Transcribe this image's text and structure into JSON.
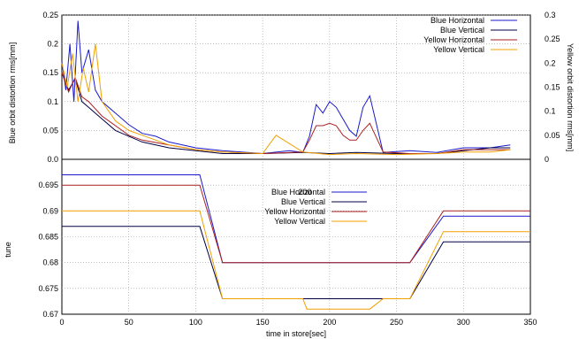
{
  "figure": {
    "top_ylabel": "Blue orbit distortion rms[mm]",
    "top_y2label": "Yellow orbit distortion rms[mm]",
    "bottom_ylabel": "tune",
    "xlabel": "time in store[sec]",
    "stray_label": "200"
  },
  "colors": {
    "blue_horizontal": "#1a1acc",
    "blue_vertical": "#000044",
    "yellow_horizontal": "#aa2222",
    "yellow_vertical": "#f0a000",
    "grid": "#999999"
  },
  "chart_data": [
    {
      "type": "line",
      "title": "",
      "xlabel": "",
      "ylabel": "Blue orbit distortion rms[mm]",
      "y2label": "Yellow orbit distortion rms[mm]",
      "xlim": [
        0,
        350
      ],
      "ylim": [
        0,
        0.25
      ],
      "y2lim": [
        0,
        0.3
      ],
      "x_ticks": [
        0,
        50,
        100,
        150,
        200,
        250,
        300,
        350
      ],
      "y_ticks": [
        "0.05",
        "0.1",
        "0.15",
        "0.2",
        "0.25"
      ],
      "y_ticks_zero_left": "0.0",
      "y2_ticks": [
        "0.05",
        "0.1",
        "0.15",
        "0.2",
        "0.25",
        "0.3"
      ],
      "y2_ticks_zero": "0",
      "grid": true,
      "legend_position": "top-right",
      "series": [
        {
          "name": "Blue Horizontal",
          "axis": "y",
          "color": "blue_horizontal",
          "x": [
            0,
            3,
            6,
            9,
            12,
            15,
            20,
            25,
            30,
            40,
            50,
            60,
            70,
            80,
            100,
            120,
            150,
            170,
            180,
            185,
            190,
            195,
            200,
            205,
            210,
            215,
            220,
            225,
            230,
            240,
            260,
            280,
            300,
            320,
            335
          ],
          "y": [
            0.17,
            0.12,
            0.2,
            0.1,
            0.24,
            0.15,
            0.19,
            0.12,
            0.1,
            0.08,
            0.06,
            0.045,
            0.04,
            0.03,
            0.02,
            0.015,
            0.01,
            0.015,
            0.012,
            0.04,
            0.095,
            0.08,
            0.1,
            0.09,
            0.07,
            0.05,
            0.04,
            0.09,
            0.11,
            0.012,
            0.015,
            0.012,
            0.02,
            0.02,
            0.025
          ]
        },
        {
          "name": "Blue Vertical",
          "axis": "y",
          "color": "blue_vertical",
          "x": [
            0,
            5,
            10,
            15,
            20,
            30,
            40,
            50,
            60,
            80,
            100,
            120,
            150,
            180,
            200,
            220,
            250,
            280,
            300,
            320,
            335
          ],
          "y": [
            0.15,
            0.12,
            0.14,
            0.1,
            0.09,
            0.07,
            0.05,
            0.04,
            0.03,
            0.02,
            0.015,
            0.01,
            0.01,
            0.012,
            0.01,
            0.012,
            0.01,
            0.01,
            0.015,
            0.02,
            0.02
          ]
        },
        {
          "name": "Yellow Horizontal",
          "axis": "y2",
          "color": "yellow_horizontal",
          "x": [
            0,
            5,
            10,
            15,
            20,
            30,
            40,
            50,
            60,
            80,
            100,
            120,
            150,
            180,
            185,
            190,
            195,
            200,
            205,
            210,
            215,
            220,
            225,
            230,
            240,
            260,
            280,
            300,
            320,
            335
          ],
          "y": [
            0.18,
            0.14,
            0.17,
            0.13,
            0.12,
            0.09,
            0.07,
            0.05,
            0.04,
            0.03,
            0.02,
            0.015,
            0.012,
            0.015,
            0.04,
            0.07,
            0.07,
            0.075,
            0.07,
            0.05,
            0.04,
            0.04,
            0.06,
            0.075,
            0.015,
            0.012,
            0.012,
            0.02,
            0.02,
            0.02
          ]
        },
        {
          "name": "Yellow Vertical",
          "axis": "y2",
          "color": "yellow_vertical",
          "x": [
            0,
            4,
            8,
            12,
            16,
            20,
            25,
            30,
            40,
            50,
            60,
            80,
            100,
            120,
            150,
            160,
            180,
            200,
            220,
            250,
            280,
            300,
            320,
            335
          ],
          "y": [
            0.2,
            0.15,
            0.22,
            0.12,
            0.19,
            0.14,
            0.24,
            0.12,
            0.08,
            0.06,
            0.05,
            0.03,
            0.02,
            0.015,
            0.012,
            0.05,
            0.015,
            0.01,
            0.012,
            0.01,
            0.012,
            0.015,
            0.015,
            0.02
          ]
        }
      ]
    },
    {
      "type": "line",
      "title": "",
      "xlabel": "time in store[sec]",
      "ylabel": "tune",
      "xlim": [
        0,
        350
      ],
      "ylim": [
        0.67,
        0.7
      ],
      "x_ticks": [
        "0",
        "50",
        "100",
        "150",
        "200",
        "250",
        "300",
        "350"
      ],
      "y_ticks": [
        "0.67",
        "0.675",
        "0.68",
        "0.685",
        "0.69",
        "0.695"
      ],
      "grid": true,
      "legend_position": "top-center",
      "series": [
        {
          "name": "Blue Horizontal",
          "color": "blue_horizontal",
          "x": [
            0,
            100,
            103,
            120,
            260,
            285,
            350
          ],
          "y": [
            0.697,
            0.697,
            0.697,
            0.68,
            0.68,
            0.689,
            0.689
          ]
        },
        {
          "name": "Blue Vertical",
          "color": "blue_vertical",
          "x": [
            0,
            100,
            103,
            120,
            260,
            285,
            350
          ],
          "y": [
            0.687,
            0.687,
            0.687,
            0.673,
            0.673,
            0.684,
            0.684
          ]
        },
        {
          "name": "Yellow Horizontal",
          "color": "yellow_horizontal",
          "x": [
            0,
            100,
            103,
            120,
            260,
            285,
            350
          ],
          "y": [
            0.695,
            0.695,
            0.695,
            0.68,
            0.68,
            0.69,
            0.69
          ]
        },
        {
          "name": "Yellow Vertical",
          "color": "yellow_vertical",
          "x": [
            0,
            100,
            103,
            120,
            180,
            183,
            230,
            240,
            260,
            285,
            350
          ],
          "y": [
            0.69,
            0.69,
            0.69,
            0.673,
            0.673,
            0.671,
            0.671,
            0.673,
            0.673,
            0.686,
            0.686
          ]
        }
      ]
    }
  ]
}
